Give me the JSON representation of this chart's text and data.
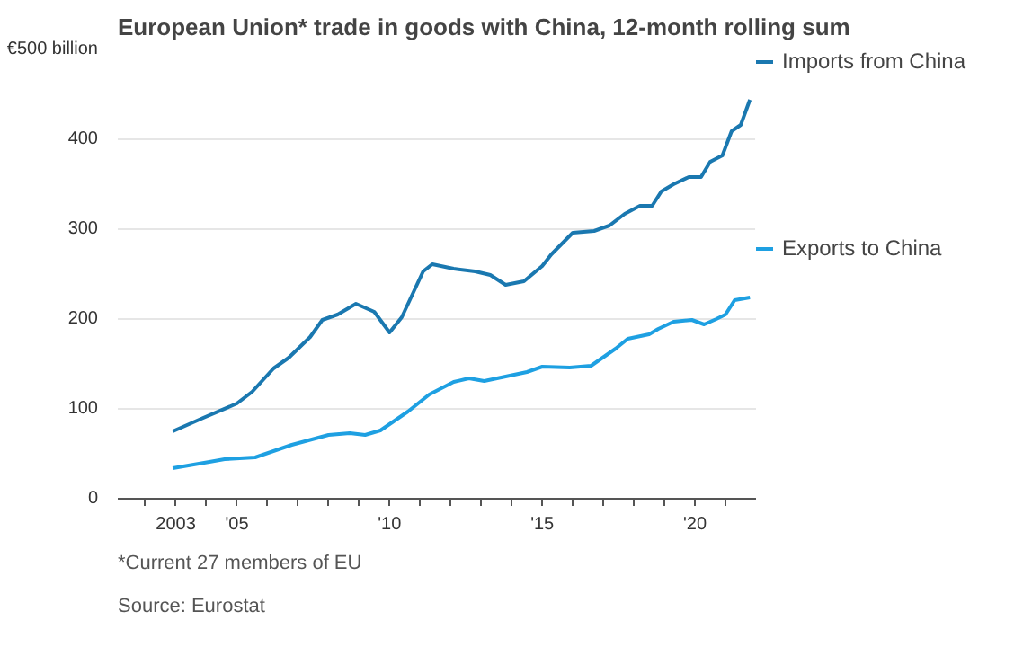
{
  "chart_data": {
    "type": "line",
    "title": "European Union* trade in goods with China, 12-month rolling sum",
    "annotations": [
      "*Current 27 members of EU",
      "Source: Eurostat"
    ],
    "xlim": [
      2001.1,
      2022
    ],
    "xticks": [
      {
        "value": 2002,
        "label": null
      },
      {
        "value": 2003,
        "label": "2003"
      },
      {
        "value": 2004,
        "label": null
      },
      {
        "value": 2005,
        "label": "'05"
      },
      {
        "value": 2006,
        "label": null
      },
      {
        "value": 2007,
        "label": null
      },
      {
        "value": 2008,
        "label": null
      },
      {
        "value": 2009,
        "label": null
      },
      {
        "value": 2010,
        "label": "'10"
      },
      {
        "value": 2011,
        "label": null
      },
      {
        "value": 2012,
        "label": null
      },
      {
        "value": 2013,
        "label": null
      },
      {
        "value": 2014,
        "label": null
      },
      {
        "value": 2015,
        "label": "'15"
      },
      {
        "value": 2016,
        "label": null
      },
      {
        "value": 2017,
        "label": null
      },
      {
        "value": 2018,
        "label": null
      },
      {
        "value": 2019,
        "label": null
      },
      {
        "value": 2020,
        "label": "'20"
      },
      {
        "value": 2021,
        "label": null
      }
    ],
    "ylim": [
      0,
      500
    ],
    "yticks": [
      0,
      100,
      200,
      300,
      400,
      {
        "value": 500,
        "label": "€500 billion"
      }
    ],
    "grid": "y",
    "legend": "right",
    "marker": "none",
    "line_style": "solid",
    "series": [
      {
        "name": "Imports from China",
        "color": "#1a78b0",
        "x": [
          2002.9,
          2003.9,
          2005.0,
          2005.5,
          2006.2,
          2006.7,
          2007.4,
          2007.8,
          2008.3,
          2008.9,
          2009.5,
          2010.0,
          2010.4,
          2011.1,
          2011.4,
          2012.1,
          2012.8,
          2013.3,
          2013.8,
          2014.4,
          2015.0,
          2015.3,
          2016.0,
          2016.7,
          2017.2,
          2017.7,
          2018.2,
          2018.6,
          2018.9,
          2019.3,
          2019.8,
          2020.2,
          2020.5,
          2020.9,
          2021.2,
          2021.5,
          2021.8
        ],
        "values": [
          75,
          90,
          106,
          119,
          145,
          157,
          180,
          199,
          205,
          217,
          208,
          185,
          202,
          253,
          261,
          256,
          253,
          249,
          238,
          242,
          259,
          272,
          296,
          298,
          304,
          317,
          326,
          326,
          342,
          350,
          358,
          358,
          375,
          382,
          409,
          416,
          444
        ]
      },
      {
        "name": "Exports to China",
        "color": "#1ea0e2",
        "x": [
          2002.9,
          2004.1,
          2004.6,
          2005.6,
          2006.8,
          2008.0,
          2008.7,
          2009.2,
          2009.7,
          2010.6,
          2011.3,
          2012.1,
          2012.6,
          2013.1,
          2013.8,
          2014.5,
          2015.0,
          2015.9,
          2016.6,
          2017.4,
          2017.8,
          2018.5,
          2018.8,
          2019.3,
          2019.9,
          2020.3,
          2020.7,
          2021.0,
          2021.3,
          2021.8
        ],
        "values": [
          34,
          41,
          44,
          46,
          60,
          71,
          73,
          71,
          76,
          97,
          116,
          130,
          134,
          131,
          136,
          141,
          147,
          146,
          148,
          167,
          178,
          183,
          189,
          197,
          199,
          194,
          200,
          205,
          221,
          224
        ]
      }
    ]
  }
}
